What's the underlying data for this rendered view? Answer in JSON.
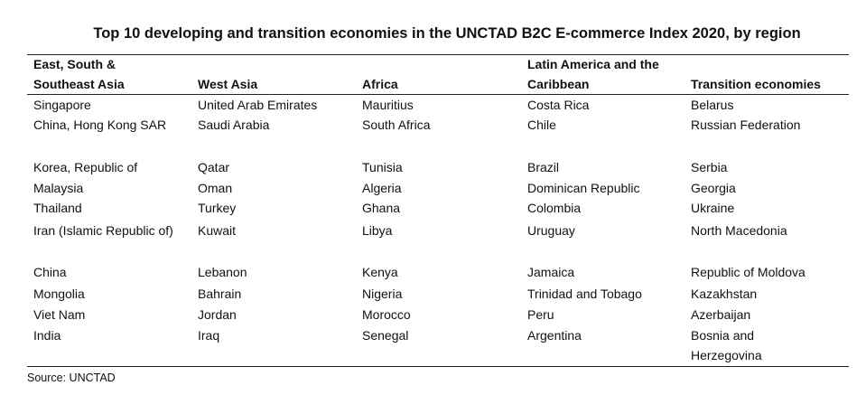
{
  "title": "Top 10 developing and transition economies in the UNCTAD B2C E-commerce Index 2020, by region",
  "table": {
    "headers": [
      "East, South & Southeast Asia",
      "West Asia",
      "Africa",
      "Latin America and the Caribbean",
      "Transition economies"
    ],
    "rows": [
      [
        "Singapore",
        "United Arab Emirates",
        "Mauritius",
        "Costa Rica",
        "Belarus"
      ],
      [
        "China, Hong Kong SAR",
        "Saudi Arabia",
        "South Africa",
        "Chile",
        "Russian Federation"
      ],
      [
        "Korea, Republic of",
        "Qatar",
        "Tunisia",
        "Brazil",
        "Serbia"
      ],
      [
        "Malaysia",
        "Oman",
        "Algeria",
        "Dominican Republic",
        "Georgia"
      ],
      [
        "Thailand",
        "Turkey",
        "Ghana",
        "Colombia",
        "Ukraine"
      ],
      [
        "Iran (Islamic Republic of)",
        "Kuwait",
        "Libya",
        "Uruguay",
        "North Macedonia"
      ],
      [
        "China",
        "Lebanon",
        "Kenya",
        "Jamaica",
        "Republic of Moldova"
      ],
      [
        "Mongolia",
        "Bahrain",
        "Nigeria",
        "Trinidad and Tobago",
        "Kazakhstan"
      ],
      [
        "Viet Nam",
        "Jordan",
        "Morocco",
        "Peru",
        "Azerbaijan"
      ],
      [
        "India",
        "Iraq",
        "Senegal",
        "Argentina",
        "Bosnia and Herzegovina"
      ]
    ]
  },
  "source": "Source: UNCTAD"
}
